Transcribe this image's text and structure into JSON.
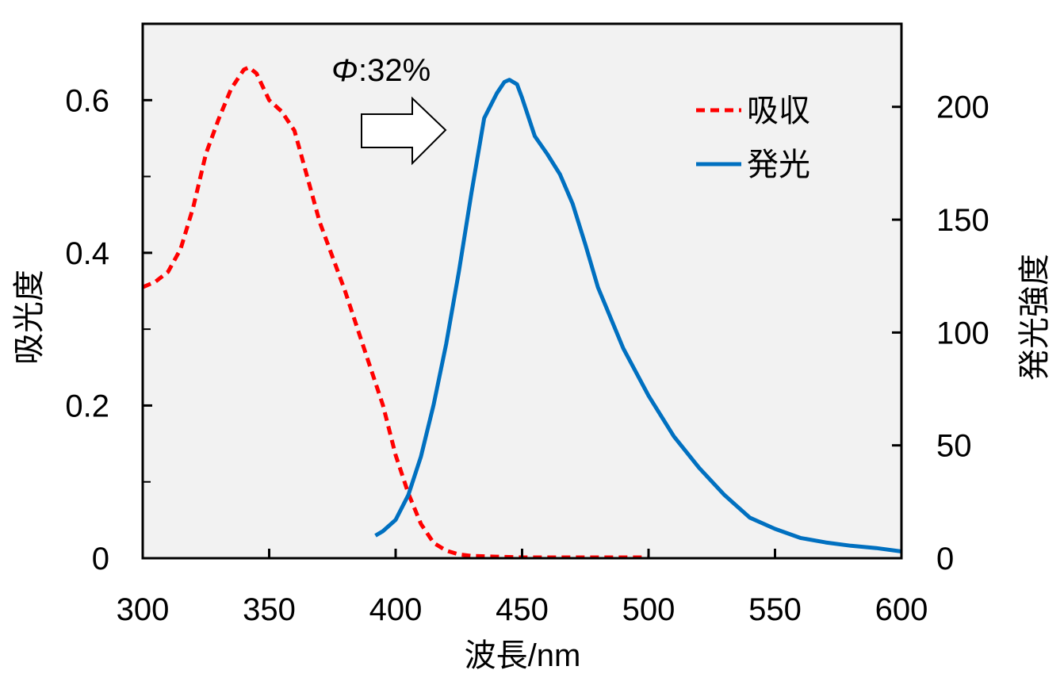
{
  "chart_data": {
    "type": "line",
    "title": "",
    "xlabel": "波長/nm",
    "ylabel_left": "吸光度",
    "ylabel_right": "発光強度",
    "xlim": [
      300,
      600
    ],
    "ylim_left": [
      0,
      0.7
    ],
    "ylim_right": [
      0,
      236.8
    ],
    "x_ticks": [
      300,
      350,
      400,
      450,
      500,
      550,
      600
    ],
    "x_tick_labels": [
      "300",
      "350",
      "400",
      "450",
      "500",
      "550",
      "600"
    ],
    "y_left_ticks": [
      0,
      0.2,
      0.4,
      0.6
    ],
    "y_left_tick_labels": [
      "0",
      "0.2",
      "0.4",
      "0.6"
    ],
    "y_left_minor_ticks": [
      0.1,
      0.3,
      0.5
    ],
    "y_right_ticks": [
      0,
      50,
      100,
      150,
      200
    ],
    "y_right_tick_labels": [
      "0",
      "50",
      "100",
      "150",
      "200"
    ],
    "grid": false,
    "plot_background": "#f2f2f2",
    "legend_position": "top-right",
    "annotation": {
      "symbol": "Φ",
      "text": ":32%"
    },
    "series": [
      {
        "name": "吸収",
        "axis": "left",
        "color": "#ff0000",
        "style": "dashed",
        "x": [
          300,
          305,
          310,
          315,
          320,
          325,
          330,
          335,
          340,
          342,
          345,
          350,
          355,
          360,
          365,
          370,
          375,
          380,
          385,
          390,
          395,
          400,
          405,
          410,
          415,
          420,
          425,
          430,
          440,
          450,
          460,
          470,
          480,
          490,
          500
        ],
        "y": [
          0.355,
          0.362,
          0.375,
          0.405,
          0.46,
          0.53,
          0.575,
          0.615,
          0.64,
          0.643,
          0.635,
          0.6,
          0.585,
          0.56,
          0.5,
          0.44,
          0.395,
          0.35,
          0.3,
          0.25,
          0.2,
          0.135,
          0.085,
          0.045,
          0.02,
          0.01,
          0.005,
          0.003,
          0.002,
          0.001,
          0.001,
          0.001,
          0.001,
          0.001,
          0.001
        ]
      },
      {
        "name": "発光",
        "axis": "right",
        "color": "#0070c0",
        "style": "solid",
        "x": [
          392,
          395,
          400,
          405,
          410,
          415,
          420,
          425,
          430,
          435,
          440,
          443,
          445,
          448,
          450,
          455,
          460,
          465,
          470,
          475,
          480,
          490,
          500,
          510,
          520,
          530,
          540,
          550,
          560,
          570,
          580,
          590,
          600
        ],
        "y": [
          10,
          12,
          17,
          28,
          45,
          68,
          95,
          127,
          162,
          195,
          206,
          211,
          212,
          210,
          204,
          187,
          179,
          170,
          157,
          139,
          120,
          93,
          72,
          54,
          40,
          28,
          18,
          13,
          9,
          7,
          5.5,
          4.5,
          3
        ]
      }
    ]
  }
}
